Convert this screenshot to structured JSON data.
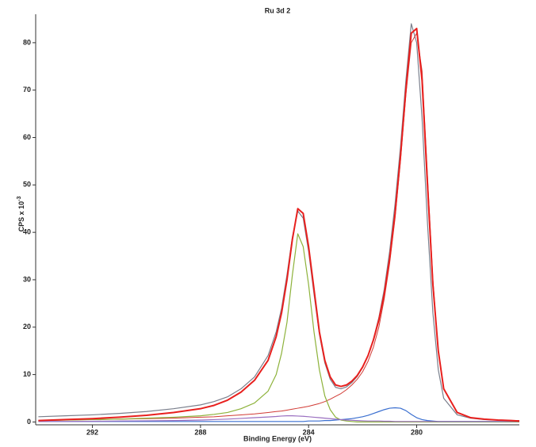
{
  "chart_data": {
    "type": "line",
    "title": "Ru 3d 2",
    "x_label": "Binding Energy (eV)",
    "y_label": "CPS x 10",
    "y_label_exponent": "-3",
    "x": [
      294,
      293,
      292,
      291,
      290,
      289,
      288,
      287.5,
      287,
      286.5,
      286,
      285.5,
      285.2,
      285,
      284.8,
      284.6,
      284.4,
      284.2,
      284,
      283.8,
      283.6,
      283.4,
      283.2,
      283,
      282.8,
      282.6,
      282.4,
      282.2,
      282,
      281.8,
      281.6,
      281.4,
      281.2,
      281,
      280.8,
      280.6,
      280.4,
      280.2,
      280,
      279.8,
      279.6,
      279.4,
      279.2,
      279,
      278.5,
      278,
      277.5,
      277,
      276.5,
      276.2
    ],
    "series": [
      {
        "color": "#7a7f8c",
        "width": 1.2,
        "values": [
          1.1,
          1.3,
          1.5,
          1.8,
          2.2,
          2.8,
          3.6,
          4.3,
          5.3,
          7.0,
          9.5,
          14,
          19,
          24,
          31,
          39,
          44.5,
          43,
          36,
          27,
          18.5,
          12.5,
          9,
          7.3,
          7.0,
          7.4,
          8.3,
          9.6,
          11.5,
          14,
          17.5,
          22,
          28,
          36,
          46,
          58,
          72,
          84,
          80,
          64,
          42,
          23,
          11,
          5,
          1.5,
          0.8,
          0.5,
          0.4,
          0.3,
          0.3
        ]
      },
      {
        "color": "#d13a34",
        "width": 1,
        "values": [
          0.3,
          0.4,
          0.5,
          0.6,
          0.7,
          0.8,
          1.0,
          1.1,
          1.3,
          1.5,
          1.7,
          2.0,
          2.2,
          2.3,
          2.5,
          2.7,
          2.9,
          3.1,
          3.3,
          3.6,
          3.9,
          4.3,
          4.8,
          5.4,
          6.0,
          6.8,
          7.8,
          9.0,
          10.6,
          12.8,
          15.8,
          20,
          26,
          33.5,
          43,
          55,
          69,
          80,
          82,
          74,
          52,
          30,
          15,
          7,
          2,
          0.9,
          0.6,
          0.4,
          0.3,
          0.2
        ]
      },
      {
        "color": "#8db23a",
        "width": 1.2,
        "values": [
          0.3,
          0.4,
          0.5,
          0.6,
          0.8,
          1.0,
          1.3,
          1.6,
          2.0,
          2.8,
          4.0,
          6.5,
          10,
          14.5,
          21,
          31,
          39.7,
          37,
          29,
          19,
          11,
          5.5,
          2.6,
          1.0,
          0.4,
          0.2,
          0.1,
          0,
          0,
          0,
          0,
          0,
          0,
          0,
          0,
          0,
          0,
          0,
          0,
          0,
          0,
          0,
          0,
          0,
          0,
          0,
          0,
          0,
          0,
          0
        ]
      },
      {
        "color": "#3a6fd0",
        "width": 1.2,
        "values": [
          0.1,
          0.1,
          0.1,
          0.1,
          0.1,
          0.1,
          0.1,
          0.1,
          0.1,
          0.1,
          0.1,
          0.1,
          0.1,
          0.1,
          0.1,
          0.1,
          0.1,
          0.1,
          0.2,
          0.2,
          0.2,
          0.3,
          0.3,
          0.4,
          0.5,
          0.6,
          0.7,
          0.9,
          1.1,
          1.4,
          1.8,
          2.2,
          2.6,
          2.9,
          3.0,
          2.9,
          2.4,
          1.6,
          0.9,
          0.5,
          0.3,
          0.2,
          0.1,
          0.1,
          0.1,
          0.1,
          0.1,
          0.1,
          0.1,
          0.1
        ]
      },
      {
        "color": "#9a6fc0",
        "width": 1.2,
        "values": [
          0.1,
          0.1,
          0.15,
          0.2,
          0.25,
          0.3,
          0.4,
          0.5,
          0.6,
          0.75,
          0.9,
          1.05,
          1.15,
          1.25,
          1.3,
          1.3,
          1.25,
          1.2,
          1.1,
          1.0,
          0.9,
          0.8,
          0.7,
          0.6,
          0.5,
          0.4,
          0.35,
          0.3,
          0.25,
          0.2,
          0.2,
          0.2,
          0.15,
          0.15,
          0.1,
          0.1,
          0.1,
          0.1,
          0.1,
          0.1,
          0.1,
          0.1,
          0.1,
          0.1,
          0.1,
          0.1,
          0.1,
          0.1,
          0.1,
          0.1
        ]
      },
      {
        "color": "#e8201e",
        "width": 2,
        "values": [
          0.3,
          0.5,
          0.7,
          1.0,
          1.4,
          2.0,
          2.8,
          3.5,
          4.6,
          6.3,
          8.8,
          13,
          18,
          23,
          30,
          38.5,
          45,
          44,
          37,
          28,
          19,
          13,
          9.5,
          7.8,
          7.5,
          7.8,
          8.6,
          9.8,
          11.6,
          14,
          17.3,
          21.5,
          27,
          34.5,
          44,
          56,
          70,
          82,
          83,
          72,
          50,
          29,
          15,
          7,
          2,
          0.9,
          0.6,
          0.4,
          0.3,
          0.2
        ]
      }
    ],
    "xlim": [
      294.1,
      276.2
    ],
    "ylim": [
      -0.6,
      86
    ],
    "xticks": [
      292,
      288,
      284,
      280
    ],
    "yticks": [
      0,
      10,
      20,
      30,
      40,
      50,
      60,
      70,
      80
    ]
  }
}
